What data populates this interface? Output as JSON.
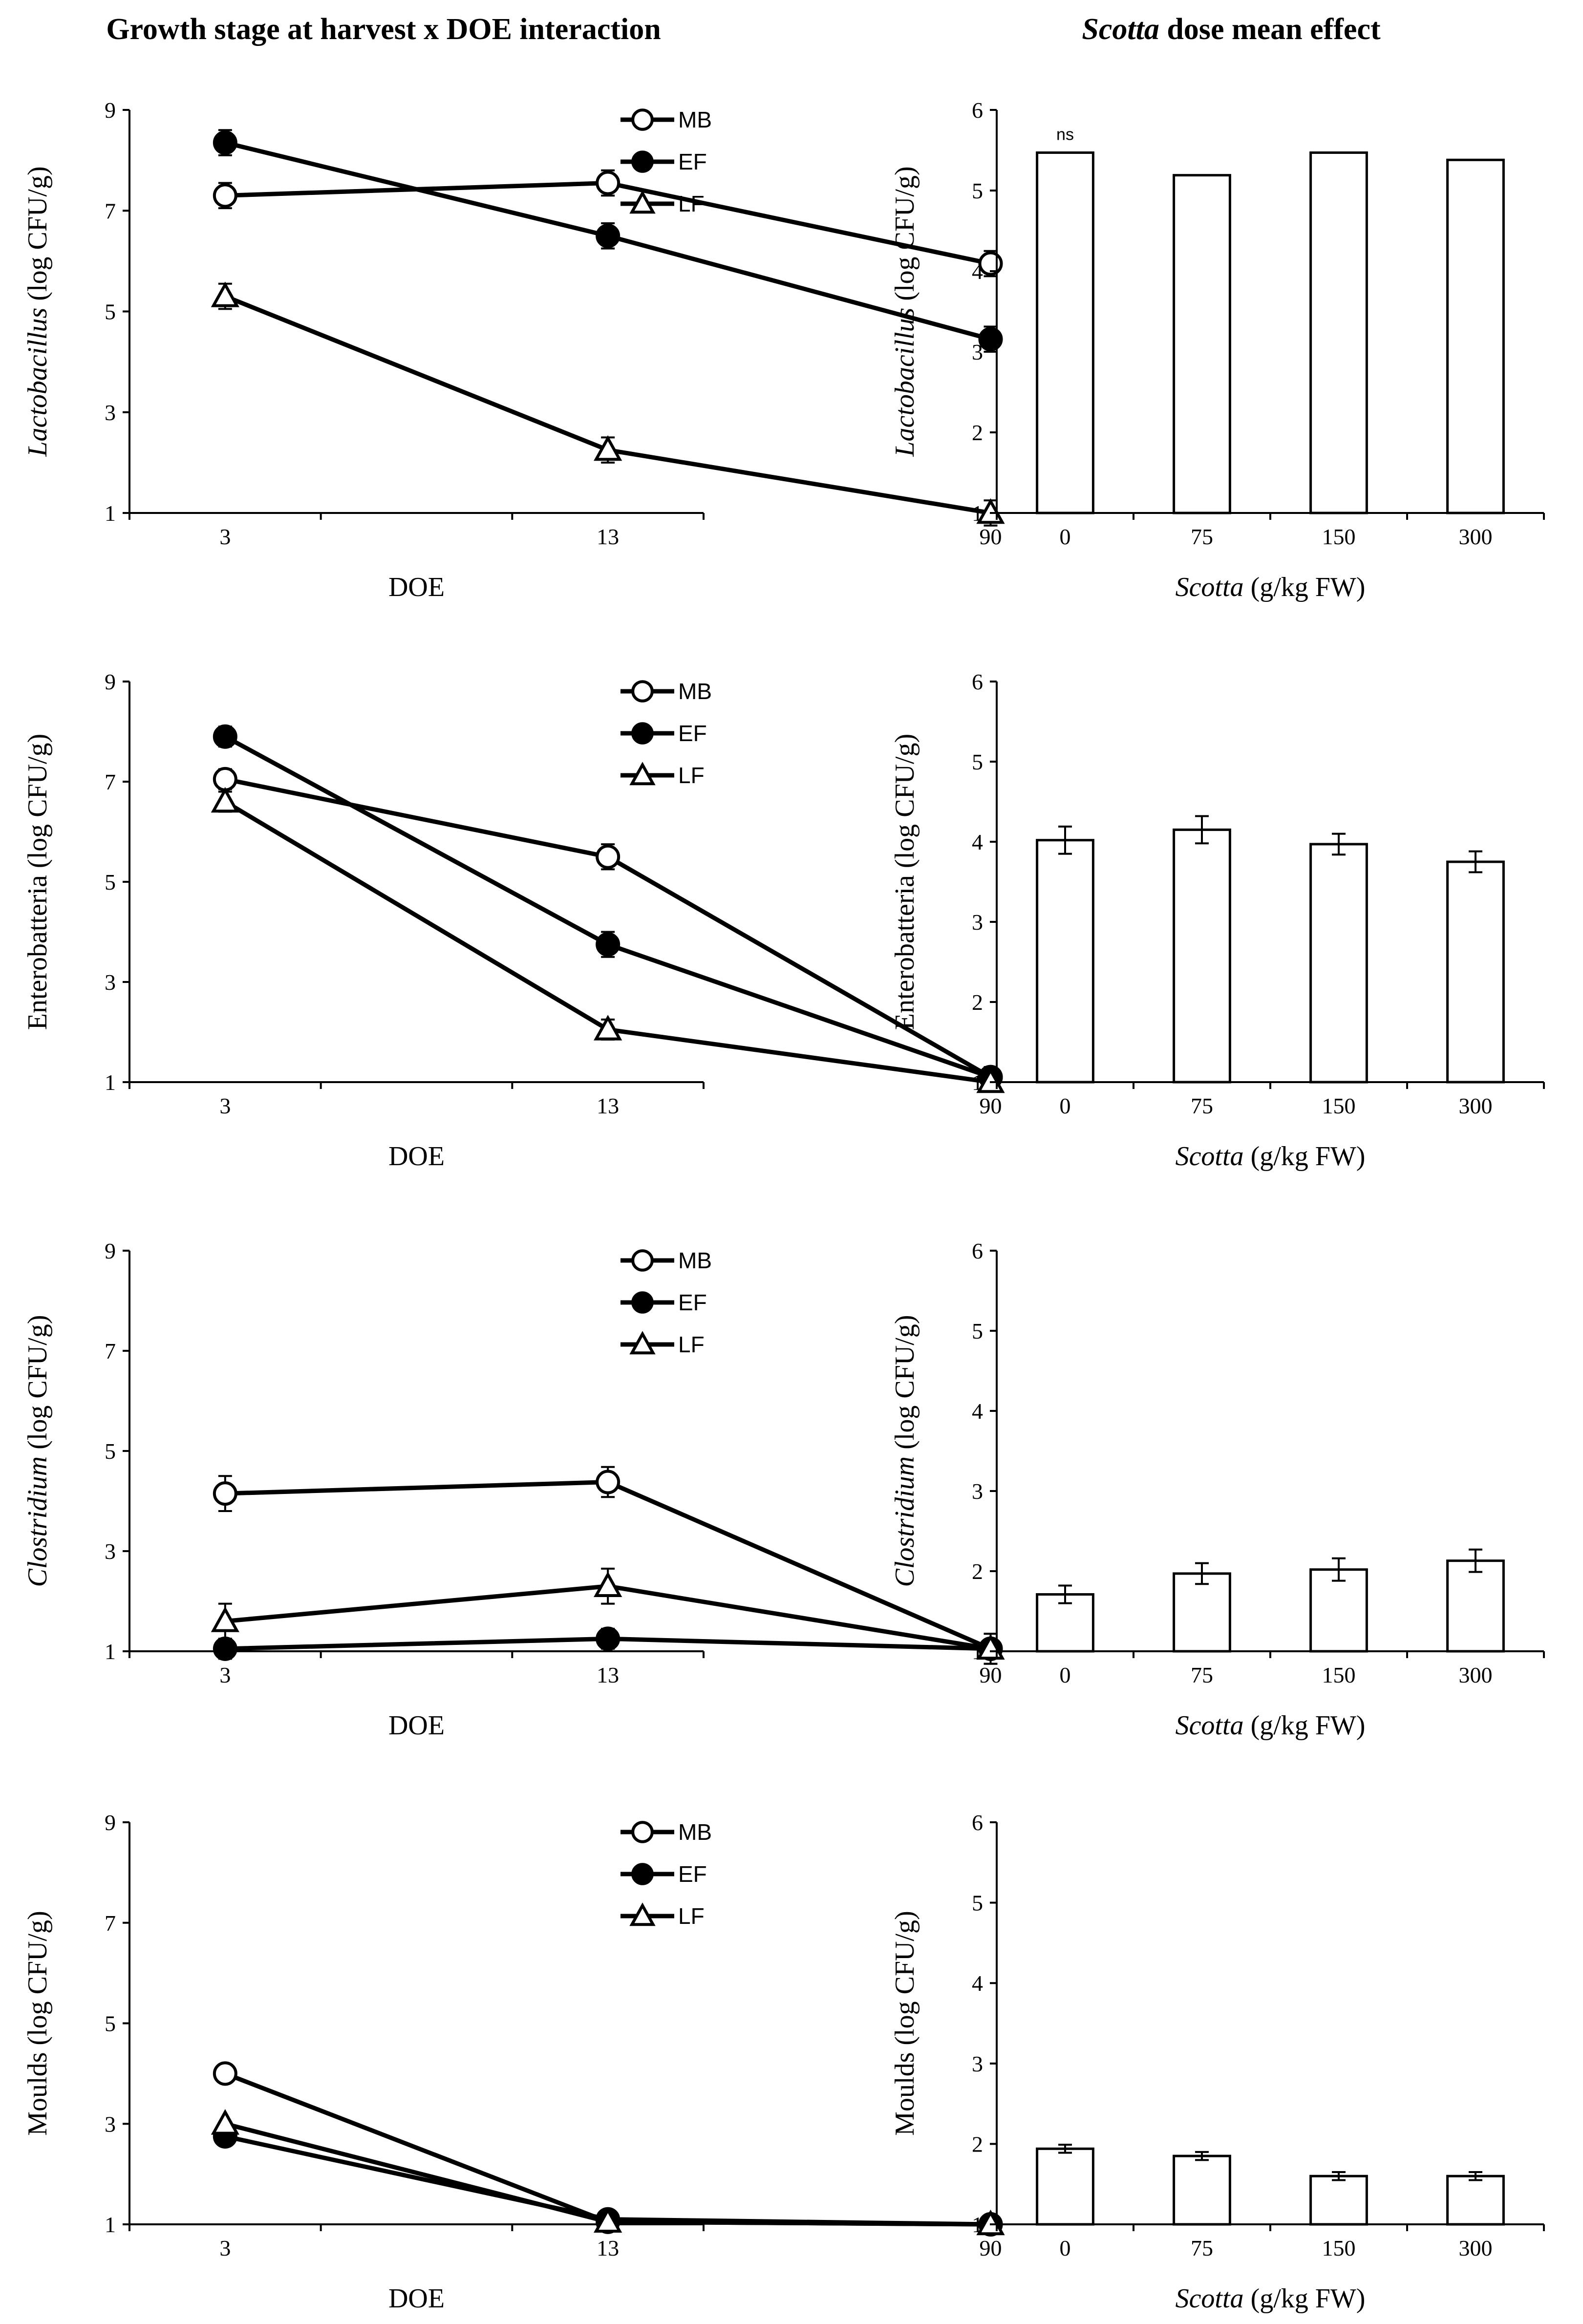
{
  "titles": {
    "left": "Growth stage at harvest x DOE interaction",
    "right_italic": "Scotta",
    "right_rest": " dose mean effect"
  },
  "chart_data": [
    {
      "type": "line",
      "panel": "lactobacillus-interaction",
      "x": [
        "3",
        "13",
        "90"
      ],
      "xlabel": "DOE",
      "ylabel_italic": "Lactobacillus",
      "ylabel_rest": "  (log CFU/g)",
      "ylim": [
        1,
        9
      ],
      "yticks": [
        1,
        3,
        5,
        7,
        9
      ],
      "series": [
        {
          "name": "MB",
          "marker": "open-circle",
          "values": [
            7.3,
            7.55,
            5.95
          ],
          "errors": [
            0.25,
            0.25,
            0.25
          ]
        },
        {
          "name": "EF",
          "marker": "filled-circle",
          "values": [
            8.35,
            6.5,
            4.45
          ],
          "errors": [
            0.25,
            0.25,
            0.25
          ]
        },
        {
          "name": "LF",
          "marker": "open-triangle",
          "values": [
            5.3,
            2.25,
            1.0
          ],
          "errors": [
            0.25,
            0.25,
            0.25
          ]
        }
      ],
      "legend": "top-right"
    },
    {
      "type": "bar",
      "panel": "lactobacillus-dose",
      "categories": [
        "0",
        "75",
        "150",
        "300"
      ],
      "values": [
        5.47,
        5.19,
        5.47,
        5.38
      ],
      "errors": [
        0,
        0,
        0,
        0
      ],
      "xlabel_italic": "Scotta",
      "xlabel_rest": " (g/kg FW)",
      "ylabel_italic": "Lactobacillus",
      "ylabel_rest": "  (log CFU/g)",
      "ylim": [
        1,
        6
      ],
      "yticks": [
        1,
        2,
        3,
        4,
        5,
        6
      ],
      "annotation": "ns"
    },
    {
      "type": "line",
      "panel": "enterobatteria-interaction",
      "x": [
        "3",
        "13",
        "90"
      ],
      "xlabel": "DOE",
      "ylabel_italic": "",
      "ylabel_rest": "Enterobatteria  (log CFU/g)",
      "ylim": [
        1,
        9
      ],
      "yticks": [
        1,
        3,
        5,
        7,
        9
      ],
      "series": [
        {
          "name": "MB",
          "marker": "open-circle",
          "values": [
            7.05,
            5.5,
            1.1
          ],
          "errors": [
            0.2,
            0.25,
            0.2
          ]
        },
        {
          "name": "EF",
          "marker": "filled-circle",
          "values": [
            7.9,
            3.75,
            1.1
          ],
          "errors": [
            0.2,
            0.25,
            0.2
          ]
        },
        {
          "name": "LF",
          "marker": "open-triangle",
          "values": [
            6.6,
            2.05,
            1.0
          ],
          "errors": [
            0.2,
            0.2,
            0.1
          ]
        }
      ],
      "legend": "top-right"
    },
    {
      "type": "bar",
      "panel": "enterobatteria-dose",
      "categories": [
        "0",
        "75",
        "150",
        "300"
      ],
      "values": [
        4.02,
        4.15,
        3.97,
        3.75
      ],
      "errors": [
        0.17,
        0.17,
        0.13,
        0.13
      ],
      "xlabel_italic": "Scotta",
      "xlabel_rest": " (g/kg FW)",
      "ylabel_italic": "",
      "ylabel_rest": "Enterobatteria  (log CFU/g)",
      "ylim": [
        1,
        6
      ],
      "yticks": [
        1,
        2,
        3,
        4,
        5,
        6
      ]
    },
    {
      "type": "line",
      "panel": "clostridium-interaction",
      "x": [
        "3",
        "13",
        "90"
      ],
      "xlabel": "DOE",
      "ylabel_italic": "Clostridium",
      "ylabel_rest": "  (log CFU/g)",
      "ylim": [
        1,
        9
      ],
      "yticks": [
        1,
        3,
        5,
        7,
        9
      ],
      "series": [
        {
          "name": "MB",
          "marker": "open-circle",
          "values": [
            4.15,
            4.38,
            1.05
          ],
          "errors": [
            0.35,
            0.3,
            0.3
          ]
        },
        {
          "name": "EF",
          "marker": "filled-circle",
          "values": [
            1.05,
            1.25,
            1.05
          ],
          "errors": [
            0.2,
            0.2,
            0.1
          ]
        },
        {
          "name": "LF",
          "marker": "open-triangle",
          "values": [
            1.6,
            2.3,
            1.05
          ],
          "errors": [
            0.35,
            0.35,
            0.3
          ]
        }
      ],
      "legend": "top-right"
    },
    {
      "type": "bar",
      "panel": "clostridium-dose",
      "categories": [
        "0",
        "75",
        "150",
        "300"
      ],
      "values": [
        1.71,
        1.97,
        2.02,
        2.13
      ],
      "errors": [
        0.11,
        0.13,
        0.14,
        0.14
      ],
      "xlabel_italic": "Scotta",
      "xlabel_rest": " (g/kg FW)",
      "ylabel_italic": "Clostridium",
      "ylabel_rest": "  (log CFU/g)",
      "ylim": [
        1,
        6
      ],
      "yticks": [
        1,
        2,
        3,
        4,
        5,
        6
      ]
    },
    {
      "type": "line",
      "panel": "moulds-interaction",
      "x": [
        "3",
        "13",
        "90"
      ],
      "xlabel": "DOE",
      "ylabel_italic": "",
      "ylabel_rest": "Moulds  (log CFU/g)",
      "ylim": [
        1,
        9
      ],
      "yticks": [
        1,
        3,
        5,
        7,
        9
      ],
      "series": [
        {
          "name": "MB",
          "marker": "open-circle",
          "values": [
            4.0,
            1.05,
            1.0
          ],
          "errors": [
            0,
            0,
            0
          ]
        },
        {
          "name": "EF",
          "marker": "filled-circle",
          "values": [
            2.75,
            1.1,
            1.0
          ],
          "errors": [
            0,
            0,
            0
          ]
        },
        {
          "name": "LF",
          "marker": "open-triangle",
          "values": [
            3.0,
            1.05,
            1.0
          ],
          "errors": [
            0,
            0,
            0
          ]
        }
      ],
      "legend": "top-right"
    },
    {
      "type": "bar",
      "panel": "moulds-dose",
      "categories": [
        "0",
        "75",
        "150",
        "300"
      ],
      "values": [
        1.94,
        1.85,
        1.6,
        1.6
      ],
      "errors": [
        0.05,
        0.05,
        0.05,
        0.05
      ],
      "xlabel_italic": "Scotta",
      "xlabel_rest": " (g/kg FW)",
      "ylabel_italic": "",
      "ylabel_rest": "Moulds  (log CFU/g)",
      "ylim": [
        1,
        6
      ],
      "yticks": [
        1,
        2,
        3,
        4,
        5,
        6
      ]
    }
  ]
}
